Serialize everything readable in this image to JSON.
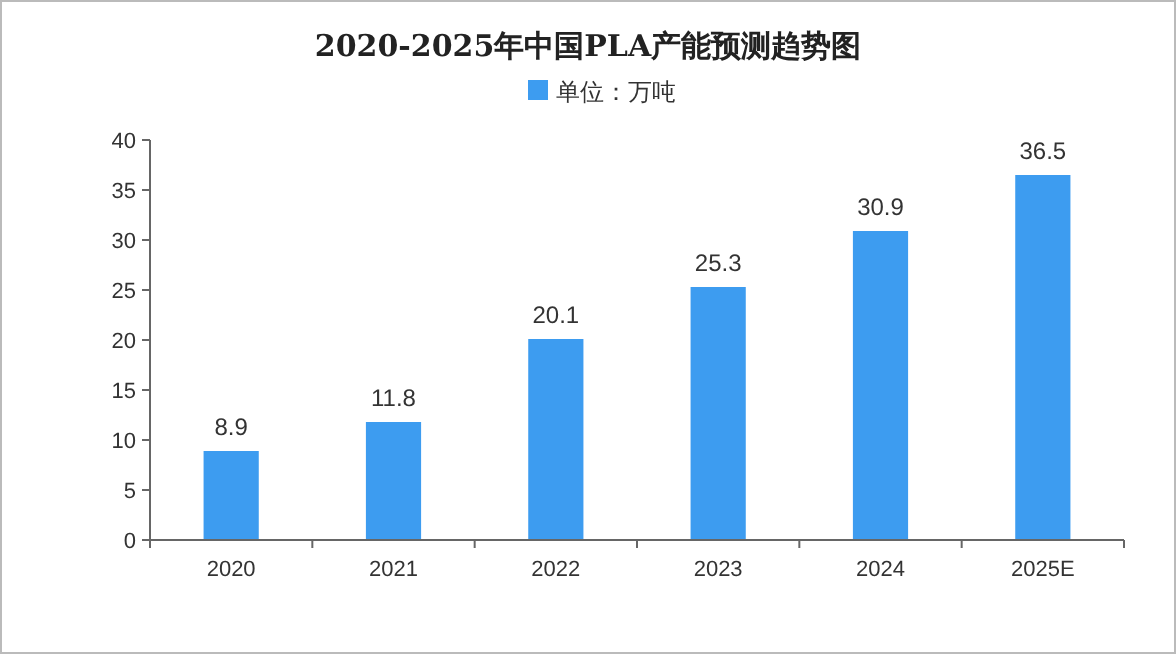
{
  "chart_data": {
    "type": "bar",
    "title": "2020-2025年中国PLA产能预测趋势图",
    "categories": [
      "2020",
      "2021",
      "2022",
      "2023",
      "2024",
      "2025E"
    ],
    "series": [
      {
        "name": "单位：万吨",
        "color": "#3d9cf0",
        "values": [
          8.9,
          11.8,
          20.1,
          25.3,
          30.9,
          36.5
        ]
      }
    ],
    "ylim": [
      0,
      40
    ],
    "yticks": [
      0,
      5,
      10,
      15,
      20,
      25,
      30,
      35,
      40
    ],
    "data_labels": true,
    "legend": "top"
  }
}
